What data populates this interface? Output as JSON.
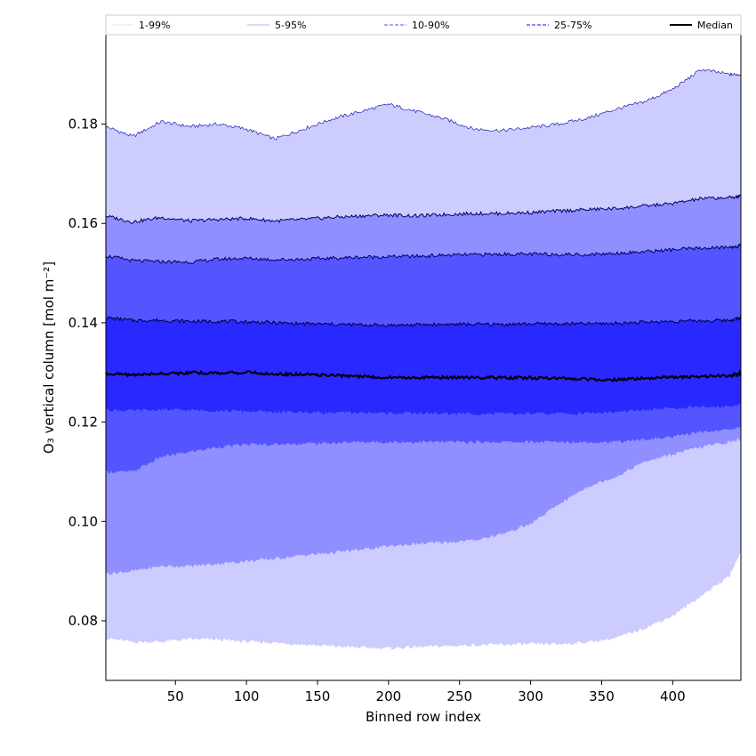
{
  "chart_data": {
    "type": "area",
    "xlabel": "Binned row index",
    "ylabel": "O₃ vertical column [mol m⁻²]",
    "xlim": [
      1,
      448
    ],
    "ylim": [
      0.068,
      0.198
    ],
    "xticks": [
      50,
      100,
      150,
      200,
      250,
      300,
      350,
      400
    ],
    "yticks": [
      0.08,
      0.1,
      0.12,
      0.14,
      0.16,
      0.18
    ],
    "ytick_labels": [
      "0.08",
      "0.10",
      "0.12",
      "0.14",
      "0.16",
      "0.18"
    ],
    "legend_placement": "top, above plot (horizontal)",
    "grid": false,
    "x": [
      1,
      20,
      40,
      60,
      80,
      100,
      120,
      140,
      160,
      180,
      200,
      220,
      240,
      260,
      280,
      300,
      320,
      340,
      360,
      380,
      400,
      420,
      440,
      448
    ],
    "bands": [
      {
        "name": "1-99%",
        "color": "#ccccff",
        "line_color": "#0000aa",
        "line_style": "solid",
        "lower": [
          0.0765,
          0.0757,
          0.0758,
          0.0763,
          0.0762,
          0.0758,
          0.0756,
          0.0752,
          0.0749,
          0.0746,
          0.0745,
          0.0747,
          0.0749,
          0.0751,
          0.0752,
          0.0753,
          0.0753,
          0.0757,
          0.0765,
          0.0785,
          0.081,
          0.085,
          0.089,
          0.094
        ],
        "upper": [
          0.1795,
          0.1775,
          0.1805,
          0.1795,
          0.18,
          0.179,
          0.177,
          0.179,
          0.181,
          0.1825,
          0.184,
          0.1825,
          0.181,
          0.179,
          0.1787,
          0.1793,
          0.18,
          0.1812,
          0.183,
          0.1845,
          0.187,
          0.191,
          0.19,
          0.19
        ]
      },
      {
        "name": "5-95%",
        "color": "#8f8fff",
        "line_color": "#000066",
        "line_style": "solid",
        "lower": [
          0.0895,
          0.09,
          0.091,
          0.091,
          0.0915,
          0.092,
          0.0925,
          0.0932,
          0.0937,
          0.0943,
          0.095,
          0.0955,
          0.0958,
          0.0962,
          0.0975,
          0.0995,
          0.1035,
          0.107,
          0.109,
          0.112,
          0.1135,
          0.115,
          0.116,
          0.1165
        ],
        "upper": [
          0.1615,
          0.1603,
          0.1612,
          0.1605,
          0.1608,
          0.161,
          0.1605,
          0.1608,
          0.1612,
          0.1615,
          0.1617,
          0.1615,
          0.1618,
          0.162,
          0.162,
          0.1622,
          0.1625,
          0.1628,
          0.163,
          0.1635,
          0.164,
          0.165,
          0.1652,
          0.1655
        ]
      },
      {
        "name": "10-90%",
        "color": "#5555ff",
        "line_color": "#000066",
        "line_style": "solid",
        "lower": [
          0.11,
          0.11,
          0.113,
          0.114,
          0.115,
          0.1155,
          0.1155,
          0.1157,
          0.1158,
          0.116,
          0.116,
          0.116,
          0.116,
          0.116,
          0.116,
          0.116,
          0.116,
          0.116,
          0.116,
          0.1165,
          0.117,
          0.118,
          0.1185,
          0.119
        ],
        "upper": [
          0.1535,
          0.1525,
          0.1523,
          0.1522,
          0.1528,
          0.153,
          0.1527,
          0.1528,
          0.153,
          0.1532,
          0.1533,
          0.1534,
          0.1536,
          0.1537,
          0.1538,
          0.1538,
          0.1538,
          0.1537,
          0.154,
          0.1543,
          0.1547,
          0.155,
          0.1552,
          0.1555
        ]
      },
      {
        "name": "25-75%",
        "color": "#2828ff",
        "line_color": "#000044",
        "line_style": "solid",
        "lower": [
          0.1225,
          0.1223,
          0.1225,
          0.1224,
          0.1223,
          0.1222,
          0.122,
          0.122,
          0.1219,
          0.1219,
          0.1218,
          0.1218,
          0.1217,
          0.1217,
          0.1217,
          0.1217,
          0.1217,
          0.1218,
          0.122,
          0.1224,
          0.1228,
          0.123,
          0.1232,
          0.1235
        ],
        "upper": [
          0.141,
          0.1405,
          0.1405,
          0.1403,
          0.1403,
          0.1402,
          0.14,
          0.1398,
          0.1397,
          0.1396,
          0.1395,
          0.1396,
          0.1397,
          0.1397,
          0.1397,
          0.1398,
          0.1398,
          0.1398,
          0.1399,
          0.1401,
          0.1403,
          0.1404,
          0.1405,
          0.141
        ]
      }
    ],
    "median": {
      "name": "Median",
      "color": "#000000",
      "values": [
        0.1298,
        0.1295,
        0.1298,
        0.1299,
        0.1299,
        0.13,
        0.1297,
        0.1296,
        0.1294,
        0.1292,
        0.129,
        0.129,
        0.129,
        0.129,
        0.1289,
        0.1289,
        0.1288,
        0.1287,
        0.1285,
        0.1288,
        0.129,
        0.1292,
        0.1293,
        0.1298
      ]
    },
    "legend": [
      {
        "label": "1-99%",
        "style": "solid-thin",
        "color": "#d9d9ff"
      },
      {
        "label": "5-95%",
        "style": "solid-thin",
        "color": "#9f9fff"
      },
      {
        "label": "10-90%",
        "style": "dashed",
        "color": "#7777ff"
      },
      {
        "label": "25-75%",
        "style": "dashed",
        "color": "#4444ee"
      },
      {
        "label": "Median",
        "style": "solid-thick",
        "color": "#000000"
      }
    ]
  }
}
